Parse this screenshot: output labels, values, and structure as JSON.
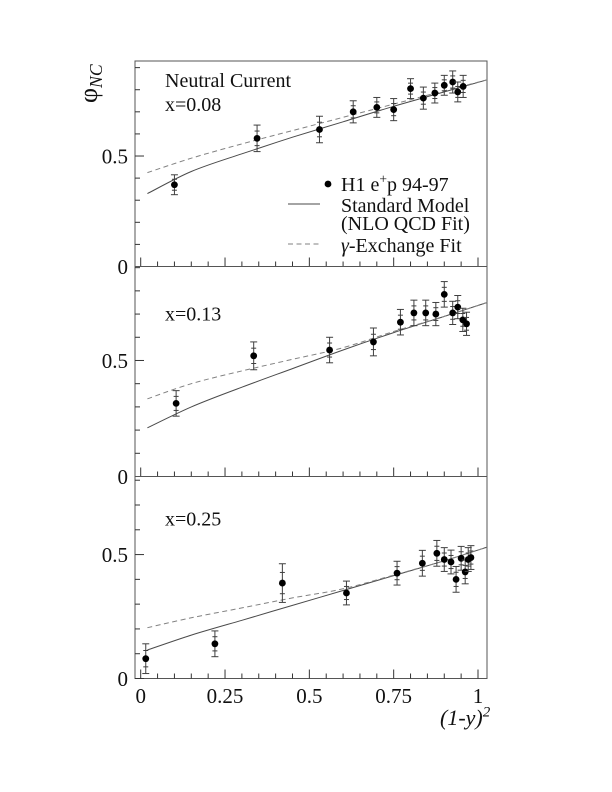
{
  "figure": {
    "y_axis_label_parts": [
      {
        "t": "φ",
        "italic": false
      },
      {
        "t": "NC",
        "sub": true,
        "italic": true
      }
    ],
    "x_axis_label_parts": [
      {
        "t": "(1-y)",
        "italic": true
      },
      {
        "t": "2",
        "sup": true,
        "italic": true
      }
    ],
    "x_ticks": {
      "major": [
        0,
        0.25,
        0.5,
        0.75,
        1
      ],
      "labels": [
        "0",
        "0.25",
        "0.5",
        "0.75",
        "1"
      ],
      "minor_step": 0.05
    },
    "y_ticks": {
      "major": [
        0,
        0.5
      ],
      "labels": [
        "0",
        "0.5"
      ],
      "minor_step": 0.1
    }
  },
  "legend": {
    "items": [
      {
        "sample": "dot",
        "parts": [
          {
            "t": "H1  e"
          },
          {
            "t": "+",
            "sup": true
          },
          {
            "t": "p 94-97"
          }
        ]
      },
      {
        "sample": "solid-line",
        "parts": [
          {
            "t": "Standard Model"
          }
        ]
      },
      {
        "sample": "none",
        "parts": [
          {
            "t": "(NLO QCD Fit)"
          }
        ]
      },
      {
        "sample": "dashed-line",
        "parts": [
          {
            "t": "γ",
            "italic": true
          },
          {
            "t": "-Exchange Fit"
          }
        ]
      }
    ]
  },
  "colors": {
    "background": "#ffffff",
    "frame": "#555555",
    "tick": "#333333",
    "text": "#111111",
    "marker": "#000000",
    "error_bar": "#3f3f3f",
    "sm_line": "#4a4a4a",
    "gamma_line": "#828282"
  },
  "chart_data": [
    {
      "type": "scatter",
      "title": "Neutral Current",
      "label": "x=0.08",
      "xlabel": "(1-y)^2",
      "ylabel": "phi_NC",
      "xlim": [
        -0.017,
        1.027
      ],
      "ylim": [
        0,
        0.93
      ],
      "series": [
        {
          "name": "H1 e+p 94-97",
          "kind": "points",
          "points": [
            {
              "x": 0.1,
              "y": 0.37,
              "err": 0.045
            },
            {
              "x": 0.345,
              "y": 0.58,
              "err": 0.06
            },
            {
              "x": 0.53,
              "y": 0.62,
              "err": 0.06
            },
            {
              "x": 0.63,
              "y": 0.7,
              "err": 0.05
            },
            {
              "x": 0.7,
              "y": 0.72,
              "err": 0.045
            },
            {
              "x": 0.75,
              "y": 0.71,
              "err": 0.05
            },
            {
              "x": 0.8,
              "y": 0.805,
              "err": 0.045
            },
            {
              "x": 0.838,
              "y": 0.762,
              "err": 0.05
            },
            {
              "x": 0.872,
              "y": 0.785,
              "err": 0.045
            },
            {
              "x": 0.9,
              "y": 0.82,
              "err": 0.045
            },
            {
              "x": 0.925,
              "y": 0.835,
              "err": 0.05
            },
            {
              "x": 0.94,
              "y": 0.79,
              "err": 0.045
            },
            {
              "x": 0.956,
              "y": 0.815,
              "err": 0.05
            }
          ]
        },
        {
          "name": "Standard Model (NLO QCD Fit)",
          "kind": "line",
          "style": "solid",
          "points": [
            [
              0.02,
              0.33
            ],
            [
              0.15,
              0.43
            ],
            [
              0.3,
              0.51
            ],
            [
              0.45,
              0.585
            ],
            [
              0.6,
              0.655
            ],
            [
              0.75,
              0.725
            ],
            [
              0.9,
              0.79
            ],
            [
              1.027,
              0.845
            ]
          ]
        },
        {
          "name": "gamma-Exchange Fit",
          "kind": "line",
          "style": "dashed",
          "points": [
            [
              0.02,
              0.425
            ],
            [
              0.15,
              0.49
            ],
            [
              0.3,
              0.555
            ],
            [
              0.45,
              0.615
            ],
            [
              0.6,
              0.675
            ],
            [
              0.75,
              0.735
            ],
            [
              0.9,
              0.795
            ],
            [
              1.027,
              0.845
            ]
          ]
        }
      ]
    },
    {
      "type": "scatter",
      "title": "",
      "label": "x=0.13",
      "xlabel": "(1-y)^2",
      "ylabel": "phi_NC",
      "xlim": [
        -0.017,
        1.027
      ],
      "ylim": [
        0,
        0.905
      ],
      "series": [
        {
          "name": "H1 e+p 94-97",
          "kind": "points",
          "points": [
            {
              "x": 0.105,
              "y": 0.315,
              "err": 0.055
            },
            {
              "x": 0.335,
              "y": 0.52,
              "err": 0.06
            },
            {
              "x": 0.56,
              "y": 0.545,
              "err": 0.055
            },
            {
              "x": 0.69,
              "y": 0.58,
              "err": 0.06
            },
            {
              "x": 0.77,
              "y": 0.665,
              "err": 0.055
            },
            {
              "x": 0.81,
              "y": 0.705,
              "err": 0.055
            },
            {
              "x": 0.845,
              "y": 0.705,
              "err": 0.055
            },
            {
              "x": 0.875,
              "y": 0.7,
              "err": 0.05
            },
            {
              "x": 0.9,
              "y": 0.785,
              "err": 0.055
            },
            {
              "x": 0.925,
              "y": 0.705,
              "err": 0.05
            },
            {
              "x": 0.94,
              "y": 0.73,
              "err": 0.05
            },
            {
              "x": 0.955,
              "y": 0.675,
              "err": 0.05
            },
            {
              "x": 0.966,
              "y": 0.658,
              "err": 0.05
            }
          ]
        },
        {
          "name": "Standard Model (NLO QCD Fit)",
          "kind": "line",
          "style": "solid",
          "points": [
            [
              0.02,
              0.21
            ],
            [
              0.15,
              0.3
            ],
            [
              0.3,
              0.385
            ],
            [
              0.45,
              0.465
            ],
            [
              0.6,
              0.545
            ],
            [
              0.75,
              0.62
            ],
            [
              0.9,
              0.69
            ],
            [
              1.027,
              0.75
            ]
          ]
        },
        {
          "name": "gamma-Exchange Fit",
          "kind": "line",
          "style": "dashed",
          "points": [
            [
              0.02,
              0.335
            ],
            [
              0.15,
              0.4
            ],
            [
              0.3,
              0.455
            ],
            [
              0.45,
              0.505
            ],
            [
              0.6,
              0.555
            ],
            [
              0.75,
              0.625
            ],
            [
              0.9,
              0.69
            ],
            [
              1.027,
              0.75
            ]
          ]
        }
      ]
    },
    {
      "type": "scatter",
      "title": "",
      "label": "x=0.25",
      "xlabel": "(1-y)^2",
      "ylabel": "phi_NC",
      "xlim": [
        -0.017,
        1.027
      ],
      "ylim": [
        0,
        0.815
      ],
      "series": [
        {
          "name": "H1 e+p 94-97",
          "kind": "points",
          "points": [
            {
              "x": 0.015,
              "y": 0.08,
              "err": 0.06
            },
            {
              "x": 0.22,
              "y": 0.14,
              "err": 0.052
            },
            {
              "x": 0.42,
              "y": 0.385,
              "err": 0.078
            },
            {
              "x": 0.61,
              "y": 0.345,
              "err": 0.048
            },
            {
              "x": 0.76,
              "y": 0.425,
              "err": 0.048
            },
            {
              "x": 0.835,
              "y": 0.465,
              "err": 0.052
            },
            {
              "x": 0.878,
              "y": 0.505,
              "err": 0.052
            },
            {
              "x": 0.9,
              "y": 0.48,
              "err": 0.048
            },
            {
              "x": 0.92,
              "y": 0.47,
              "err": 0.048
            },
            {
              "x": 0.935,
              "y": 0.4,
              "err": 0.052
            },
            {
              "x": 0.95,
              "y": 0.485,
              "err": 0.048
            },
            {
              "x": 0.962,
              "y": 0.43,
              "err": 0.048
            },
            {
              "x": 0.971,
              "y": 0.48,
              "err": 0.048
            },
            {
              "x": 0.979,
              "y": 0.488,
              "err": 0.048
            }
          ]
        },
        {
          "name": "Standard Model (NLO QCD Fit)",
          "kind": "line",
          "style": "solid",
          "points": [
            [
              0.02,
              0.115
            ],
            [
              0.15,
              0.175
            ],
            [
              0.3,
              0.235
            ],
            [
              0.45,
              0.295
            ],
            [
              0.6,
              0.355
            ],
            [
              0.75,
              0.415
            ],
            [
              0.9,
              0.475
            ],
            [
              1.027,
              0.53
            ]
          ]
        },
        {
          "name": "gamma-Exchange Fit",
          "kind": "line",
          "style": "dashed",
          "points": [
            [
              0.02,
              0.205
            ],
            [
              0.15,
              0.245
            ],
            [
              0.3,
              0.285
            ],
            [
              0.45,
              0.325
            ],
            [
              0.6,
              0.362
            ],
            [
              0.75,
              0.417
            ],
            [
              0.9,
              0.475
            ],
            [
              1.027,
              0.53
            ]
          ]
        }
      ]
    }
  ]
}
